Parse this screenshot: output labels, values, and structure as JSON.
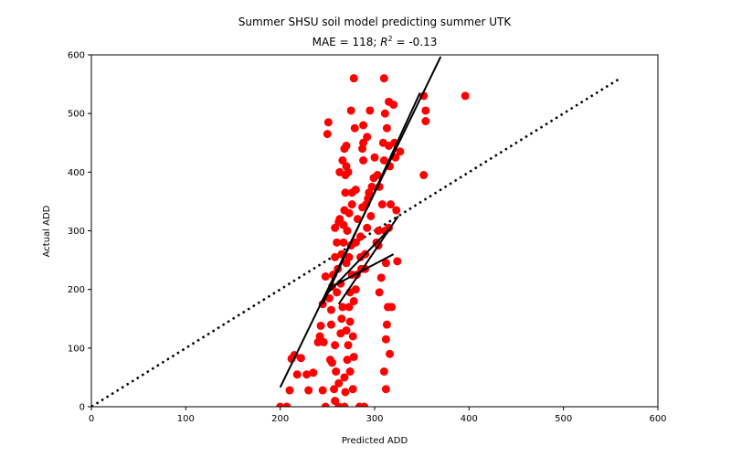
{
  "chart_data": {
    "type": "scatter",
    "title": "Summer SHSU soil model predicting summer UTK",
    "subtitle_prefix": "MAE = 118; ",
    "subtitle_r": "R",
    "subtitle_sup": "2",
    "subtitle_suffix": " = -0.13",
    "xlabel": "Predicted ADD",
    "ylabel": "Actual ADD",
    "xlim": [
      0,
      600
    ],
    "ylim": [
      0,
      600
    ],
    "xticks": [
      0,
      100,
      200,
      300,
      400,
      500,
      600
    ],
    "yticks": [
      0,
      100,
      200,
      300,
      400,
      500,
      600
    ],
    "grid": false,
    "point_color": "#ff0000",
    "line_color": "#000000",
    "points": [
      [
        200,
        0
      ],
      [
        207,
        0
      ],
      [
        210,
        28
      ],
      [
        212,
        82
      ],
      [
        215,
        88
      ],
      [
        218,
        55
      ],
      [
        222,
        83
      ],
      [
        228,
        55
      ],
      [
        230,
        28
      ],
      [
        235,
        58
      ],
      [
        240,
        110
      ],
      [
        242,
        120
      ],
      [
        243,
        138
      ],
      [
        245,
        28
      ],
      [
        245,
        175
      ],
      [
        246,
        110
      ],
      [
        248,
        0
      ],
      [
        248,
        222
      ],
      [
        250,
        465
      ],
      [
        251,
        485
      ],
      [
        252,
        185
      ],
      [
        253,
        80
      ],
      [
        254,
        165
      ],
      [
        254,
        140
      ],
      [
        255,
        205
      ],
      [
        255,
        75
      ],
      [
        256,
        225
      ],
      [
        257,
        30
      ],
      [
        258,
        10
      ],
      [
        258,
        105
      ],
      [
        258,
        255
      ],
      [
        258,
        305
      ],
      [
        259,
        60
      ],
      [
        260,
        280
      ],
      [
        260,
        195
      ],
      [
        261,
        235
      ],
      [
        262,
        0
      ],
      [
        262,
        40
      ],
      [
        262,
        315
      ],
      [
        263,
        400
      ],
      [
        263,
        320
      ],
      [
        264,
        125
      ],
      [
        264,
        210
      ],
      [
        265,
        150
      ],
      [
        265,
        260
      ],
      [
        266,
        170
      ],
      [
        266,
        420
      ],
      [
        267,
        280
      ],
      [
        267,
        310
      ],
      [
        268,
        0
      ],
      [
        268,
        50
      ],
      [
        268,
        335
      ],
      [
        268,
        440
      ],
      [
        269,
        25
      ],
      [
        269,
        365
      ],
      [
        269,
        395
      ],
      [
        270,
        410
      ],
      [
        270,
        130
      ],
      [
        270,
        245
      ],
      [
        270,
        445
      ],
      [
        271,
        80
      ],
      [
        271,
        300
      ],
      [
        272,
        105
      ],
      [
        272,
        400
      ],
      [
        273,
        170
      ],
      [
        273,
        255
      ],
      [
        273,
        330
      ],
      [
        274,
        60
      ],
      [
        274,
        145
      ],
      [
        274,
        195
      ],
      [
        275,
        505
      ],
      [
        275,
        275
      ],
      [
        276,
        345
      ],
      [
        276,
        225
      ],
      [
        276,
        365
      ],
      [
        277,
        120
      ],
      [
        277,
        30
      ],
      [
        278,
        560
      ],
      [
        278,
        85
      ],
      [
        278,
        180
      ],
      [
        279,
        475
      ],
      [
        280,
        280
      ],
      [
        280,
        200
      ],
      [
        280,
        370
      ],
      [
        281,
        225
      ],
      [
        282,
        320
      ],
      [
        284,
        0
      ],
      [
        285,
        255
      ],
      [
        285,
        290
      ],
      [
        286,
        235
      ],
      [
        287,
        340
      ],
      [
        287,
        440
      ],
      [
        288,
        420
      ],
      [
        288,
        450
      ],
      [
        288,
        480
      ],
      [
        289,
        0
      ],
      [
        290,
        235
      ],
      [
        290,
        260
      ],
      [
        291,
        345
      ],
      [
        292,
        305
      ],
      [
        292,
        460
      ],
      [
        293,
        355
      ],
      [
        294,
        365
      ],
      [
        295,
        505
      ],
      [
        296,
        325
      ],
      [
        297,
        375
      ],
      [
        299,
        390
      ],
      [
        300,
        425
      ],
      [
        302,
        280
      ],
      [
        303,
        395
      ],
      [
        304,
        275
      ],
      [
        304,
        300
      ],
      [
        305,
        195
      ],
      [
        305,
        375
      ],
      [
        307,
        220
      ],
      [
        308,
        345
      ],
      [
        309,
        450
      ],
      [
        310,
        560
      ],
      [
        310,
        60
      ],
      [
        310,
        420
      ],
      [
        311,
        500
      ],
      [
        311,
        300
      ],
      [
        312,
        30
      ],
      [
        312,
        115
      ],
      [
        312,
        245
      ],
      [
        313,
        140
      ],
      [
        313,
        475
      ],
      [
        314,
        170
      ],
      [
        315,
        305
      ],
      [
        315,
        520
      ],
      [
        315,
        445
      ],
      [
        316,
        90
      ],
      [
        316,
        410
      ],
      [
        317,
        345
      ],
      [
        318,
        170
      ],
      [
        320,
        515
      ],
      [
        321,
        450
      ],
      [
        322,
        425
      ],
      [
        323,
        335
      ],
      [
        324,
        248
      ],
      [
        327,
        435
      ],
      [
        352,
        395
      ],
      [
        352,
        530
      ],
      [
        354,
        505
      ],
      [
        354,
        487
      ],
      [
        396,
        530
      ]
    ],
    "lines": [
      [
        [
          200,
          33
        ],
        [
          370,
          597
        ]
      ],
      [
        [
          245,
          175
        ],
        [
          348,
          535
        ]
      ],
      [
        [
          262,
          175
        ],
        [
          325,
          325
        ]
      ],
      [
        [
          248,
          190
        ],
        [
          317,
          305
        ]
      ],
      [
        [
          255,
          205
        ],
        [
          320,
          260
        ]
      ]
    ],
    "reference_line": [
      [
        0,
        0
      ],
      [
        560,
        560
      ]
    ]
  }
}
